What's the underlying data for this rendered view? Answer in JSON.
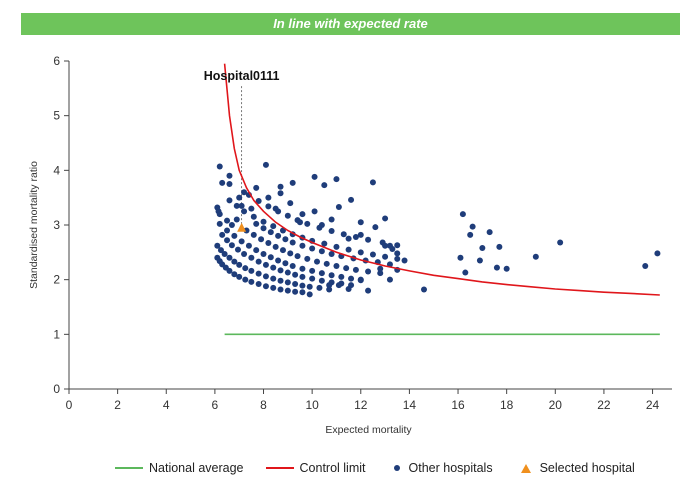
{
  "banner": {
    "text": "In line with expected rate",
    "color": "#6ec45b"
  },
  "chart_data": {
    "type": "scatter",
    "title": "",
    "xlabel": "Expected mortality",
    "ylabel": "Standardised mortality ratio",
    "xlim": [
      0,
      24.8
    ],
    "ylim": [
      0,
      6
    ],
    "xticks": [
      0,
      2,
      4,
      6,
      8,
      10,
      12,
      14,
      16,
      18,
      20,
      22,
      24
    ],
    "yticks": [
      0,
      1,
      2,
      3,
      4,
      5,
      6
    ],
    "grid": false,
    "legend_position": "bottom",
    "annotation": {
      "text": "Hospital0111",
      "x": 7.1,
      "y": 2.95,
      "label_y": 5.65
    },
    "series": [
      {
        "name": "National average",
        "kind": "line",
        "color": "#5cb85c",
        "x": [
          6.4,
          24.3
        ],
        "y": [
          1,
          1
        ]
      },
      {
        "name": "Control limit",
        "kind": "line",
        "color": "#e0161b",
        "x": [
          6.4,
          6.6,
          6.8,
          7.0,
          7.3,
          7.6,
          8.0,
          8.5,
          9.0,
          9.5,
          10.0,
          11.0,
          12.0,
          13.0,
          14.0,
          15.0,
          16.0,
          17.0,
          18.0,
          19.0,
          20.0,
          21.0,
          22.0,
          23.0,
          24.3
        ],
        "y": [
          5.95,
          5.0,
          4.4,
          4.0,
          3.68,
          3.45,
          3.25,
          3.05,
          2.9,
          2.78,
          2.68,
          2.5,
          2.36,
          2.25,
          2.16,
          2.08,
          2.02,
          1.96,
          1.91,
          1.87,
          1.83,
          1.8,
          1.77,
          1.75,
          1.72
        ]
      },
      {
        "name": "Other hospitals",
        "kind": "scatter",
        "color": "#1f3d7a",
        "points": [
          [
            6.1,
            2.4
          ],
          [
            6.2,
            2.34
          ],
          [
            6.3,
            2.28
          ],
          [
            6.45,
            2.22
          ],
          [
            6.6,
            2.16
          ],
          [
            6.8,
            2.1
          ],
          [
            7.0,
            2.05
          ],
          [
            7.25,
            2.0
          ],
          [
            7.5,
            1.96
          ],
          [
            7.8,
            1.92
          ],
          [
            8.1,
            1.88
          ],
          [
            8.4,
            1.85
          ],
          [
            8.7,
            1.82
          ],
          [
            9.0,
            1.8
          ],
          [
            9.3,
            1.78
          ],
          [
            9.6,
            1.77
          ],
          [
            9.9,
            1.73
          ],
          [
            6.1,
            2.62
          ],
          [
            6.25,
            2.54
          ],
          [
            6.4,
            2.47
          ],
          [
            6.6,
            2.4
          ],
          [
            6.8,
            2.33
          ],
          [
            7.0,
            2.27
          ],
          [
            7.25,
            2.21
          ],
          [
            7.5,
            2.16
          ],
          [
            7.8,
            2.11
          ],
          [
            8.1,
            2.06
          ],
          [
            8.4,
            2.02
          ],
          [
            8.7,
            1.98
          ],
          [
            9.0,
            1.95
          ],
          [
            9.3,
            1.92
          ],
          [
            9.6,
            1.89
          ],
          [
            9.9,
            1.87
          ],
          [
            10.3,
            1.85
          ],
          [
            10.7,
            1.82
          ],
          [
            6.3,
            2.82
          ],
          [
            6.5,
            2.72
          ],
          [
            6.7,
            2.63
          ],
          [
            6.95,
            2.55
          ],
          [
            7.2,
            2.47
          ],
          [
            7.5,
            2.4
          ],
          [
            7.8,
            2.33
          ],
          [
            8.1,
            2.27
          ],
          [
            8.4,
            2.22
          ],
          [
            8.7,
            2.17
          ],
          [
            9.0,
            2.13
          ],
          [
            9.3,
            2.09
          ],
          [
            9.6,
            2.05
          ],
          [
            10.0,
            2.02
          ],
          [
            10.4,
            1.98
          ],
          [
            10.8,
            1.95
          ],
          [
            11.2,
            1.93
          ],
          [
            11.6,
            1.9
          ],
          [
            6.2,
            3.02
          ],
          [
            6.5,
            2.9
          ],
          [
            6.8,
            2.8
          ],
          [
            7.1,
            2.7
          ],
          [
            7.4,
            2.62
          ],
          [
            7.7,
            2.54
          ],
          [
            8.0,
            2.47
          ],
          [
            8.3,
            2.41
          ],
          [
            8.6,
            2.35
          ],
          [
            8.9,
            2.3
          ],
          [
            9.2,
            2.25
          ],
          [
            9.6,
            2.2
          ],
          [
            10.0,
            2.16
          ],
          [
            10.4,
            2.12
          ],
          [
            10.8,
            2.08
          ],
          [
            11.2,
            2.05
          ],
          [
            11.6,
            2.02
          ],
          [
            12.0,
            1.99
          ],
          [
            7.3,
            2.9
          ],
          [
            7.6,
            2.82
          ],
          [
            7.9,
            2.74
          ],
          [
            8.2,
            2.67
          ],
          [
            8.5,
            2.6
          ],
          [
            8.8,
            2.54
          ],
          [
            9.1,
            2.48
          ],
          [
            9.4,
            2.43
          ],
          [
            9.8,
            2.38
          ],
          [
            10.2,
            2.33
          ],
          [
            10.6,
            2.29
          ],
          [
            11.0,
            2.25
          ],
          [
            11.4,
            2.21
          ],
          [
            11.8,
            2.18
          ],
          [
            12.3,
            2.15
          ],
          [
            12.8,
            2.12
          ],
          [
            7.7,
            3.02
          ],
          [
            8.0,
            2.94
          ],
          [
            8.3,
            2.87
          ],
          [
            8.6,
            2.8
          ],
          [
            8.9,
            2.74
          ],
          [
            9.2,
            2.68
          ],
          [
            9.6,
            2.62
          ],
          [
            10.0,
            2.57
          ],
          [
            10.4,
            2.52
          ],
          [
            10.8,
            2.47
          ],
          [
            11.2,
            2.43
          ],
          [
            11.7,
            2.39
          ],
          [
            12.2,
            2.35
          ],
          [
            12.7,
            2.32
          ],
          [
            13.2,
            2.28
          ],
          [
            6.6,
            3.45
          ],
          [
            6.9,
            3.35
          ],
          [
            7.2,
            3.25
          ],
          [
            7.6,
            3.15
          ],
          [
            8.0,
            3.06
          ],
          [
            8.4,
            2.98
          ],
          [
            8.8,
            2.9
          ],
          [
            9.2,
            2.83
          ],
          [
            9.6,
            2.77
          ],
          [
            10.0,
            2.71
          ],
          [
            10.5,
            2.66
          ],
          [
            11.0,
            2.6
          ],
          [
            11.5,
            2.55
          ],
          [
            12.0,
            2.5
          ],
          [
            12.5,
            2.46
          ],
          [
            13.0,
            2.42
          ],
          [
            13.5,
            2.38
          ],
          [
            7.4,
            3.55
          ],
          [
            7.8,
            3.44
          ],
          [
            8.2,
            3.34
          ],
          [
            8.6,
            3.25
          ],
          [
            9.0,
            3.17
          ],
          [
            9.4,
            3.09
          ],
          [
            9.8,
            3.02
          ],
          [
            10.3,
            2.95
          ],
          [
            10.8,
            2.89
          ],
          [
            11.3,
            2.83
          ],
          [
            11.8,
            2.78
          ],
          [
            12.3,
            2.73
          ],
          [
            12.9,
            2.68
          ],
          [
            13.5,
            2.63
          ],
          [
            6.1,
            3.32
          ],
          [
            6.15,
            3.25
          ],
          [
            6.2,
            3.2
          ],
          [
            6.5,
            3.08
          ],
          [
            6.6,
            3.75
          ],
          [
            6.2,
            4.07
          ],
          [
            6.3,
            3.77
          ],
          [
            6.7,
            3.0
          ],
          [
            6.9,
            3.1
          ],
          [
            7.0,
            3.5
          ],
          [
            6.6,
            3.9
          ],
          [
            7.2,
            3.6
          ],
          [
            7.7,
            3.68
          ],
          [
            8.2,
            3.5
          ],
          [
            8.5,
            3.3
          ],
          [
            9.1,
            3.4
          ],
          [
            9.6,
            3.2
          ],
          [
            9.5,
            3.05
          ],
          [
            8.1,
            4.1
          ],
          [
            8.7,
            3.7
          ],
          [
            9.2,
            3.77
          ],
          [
            10.1,
            3.88
          ],
          [
            10.5,
            3.73
          ],
          [
            11.0,
            3.84
          ],
          [
            11.6,
            3.46
          ],
          [
            10.4,
            3.0
          ],
          [
            10.1,
            3.25
          ],
          [
            11.1,
            3.33
          ],
          [
            12.0,
            3.05
          ],
          [
            12.5,
            3.78
          ],
          [
            12.6,
            2.96
          ],
          [
            13.0,
            3.12
          ],
          [
            12.0,
            2.82
          ],
          [
            13.2,
            2.62
          ],
          [
            13.3,
            2.56
          ],
          [
            13.5,
            2.48
          ],
          [
            13.2,
            2.0
          ],
          [
            13.8,
            2.35
          ],
          [
            13.0,
            2.62
          ],
          [
            13.5,
            2.18
          ],
          [
            12.0,
            2.0
          ],
          [
            12.8,
            2.2
          ],
          [
            10.7,
            1.9
          ],
          [
            11.1,
            1.9
          ],
          [
            11.5,
            1.83
          ],
          [
            12.3,
            1.8
          ],
          [
            7.1,
            3.35
          ],
          [
            7.5,
            3.3
          ],
          [
            8.7,
            3.58
          ],
          [
            10.8,
            3.1
          ],
          [
            11.5,
            2.75
          ],
          [
            14.6,
            1.82
          ],
          [
            16.1,
            2.4
          ],
          [
            16.2,
            3.2
          ],
          [
            16.3,
            2.13
          ],
          [
            16.5,
            2.82
          ],
          [
            16.6,
            2.97
          ],
          [
            16.9,
            2.35
          ],
          [
            17.0,
            2.58
          ],
          [
            17.3,
            2.87
          ],
          [
            17.6,
            2.22
          ],
          [
            17.7,
            2.6
          ],
          [
            18.0,
            2.2
          ],
          [
            19.2,
            2.42
          ],
          [
            20.2,
            2.68
          ],
          [
            23.7,
            2.25
          ],
          [
            24.2,
            2.48
          ]
        ]
      },
      {
        "name": "Selected hospital",
        "kind": "scatter",
        "marker": "triangle",
        "color": "#f0901e",
        "points": [
          [
            7.1,
            2.95
          ]
        ]
      }
    ]
  }
}
